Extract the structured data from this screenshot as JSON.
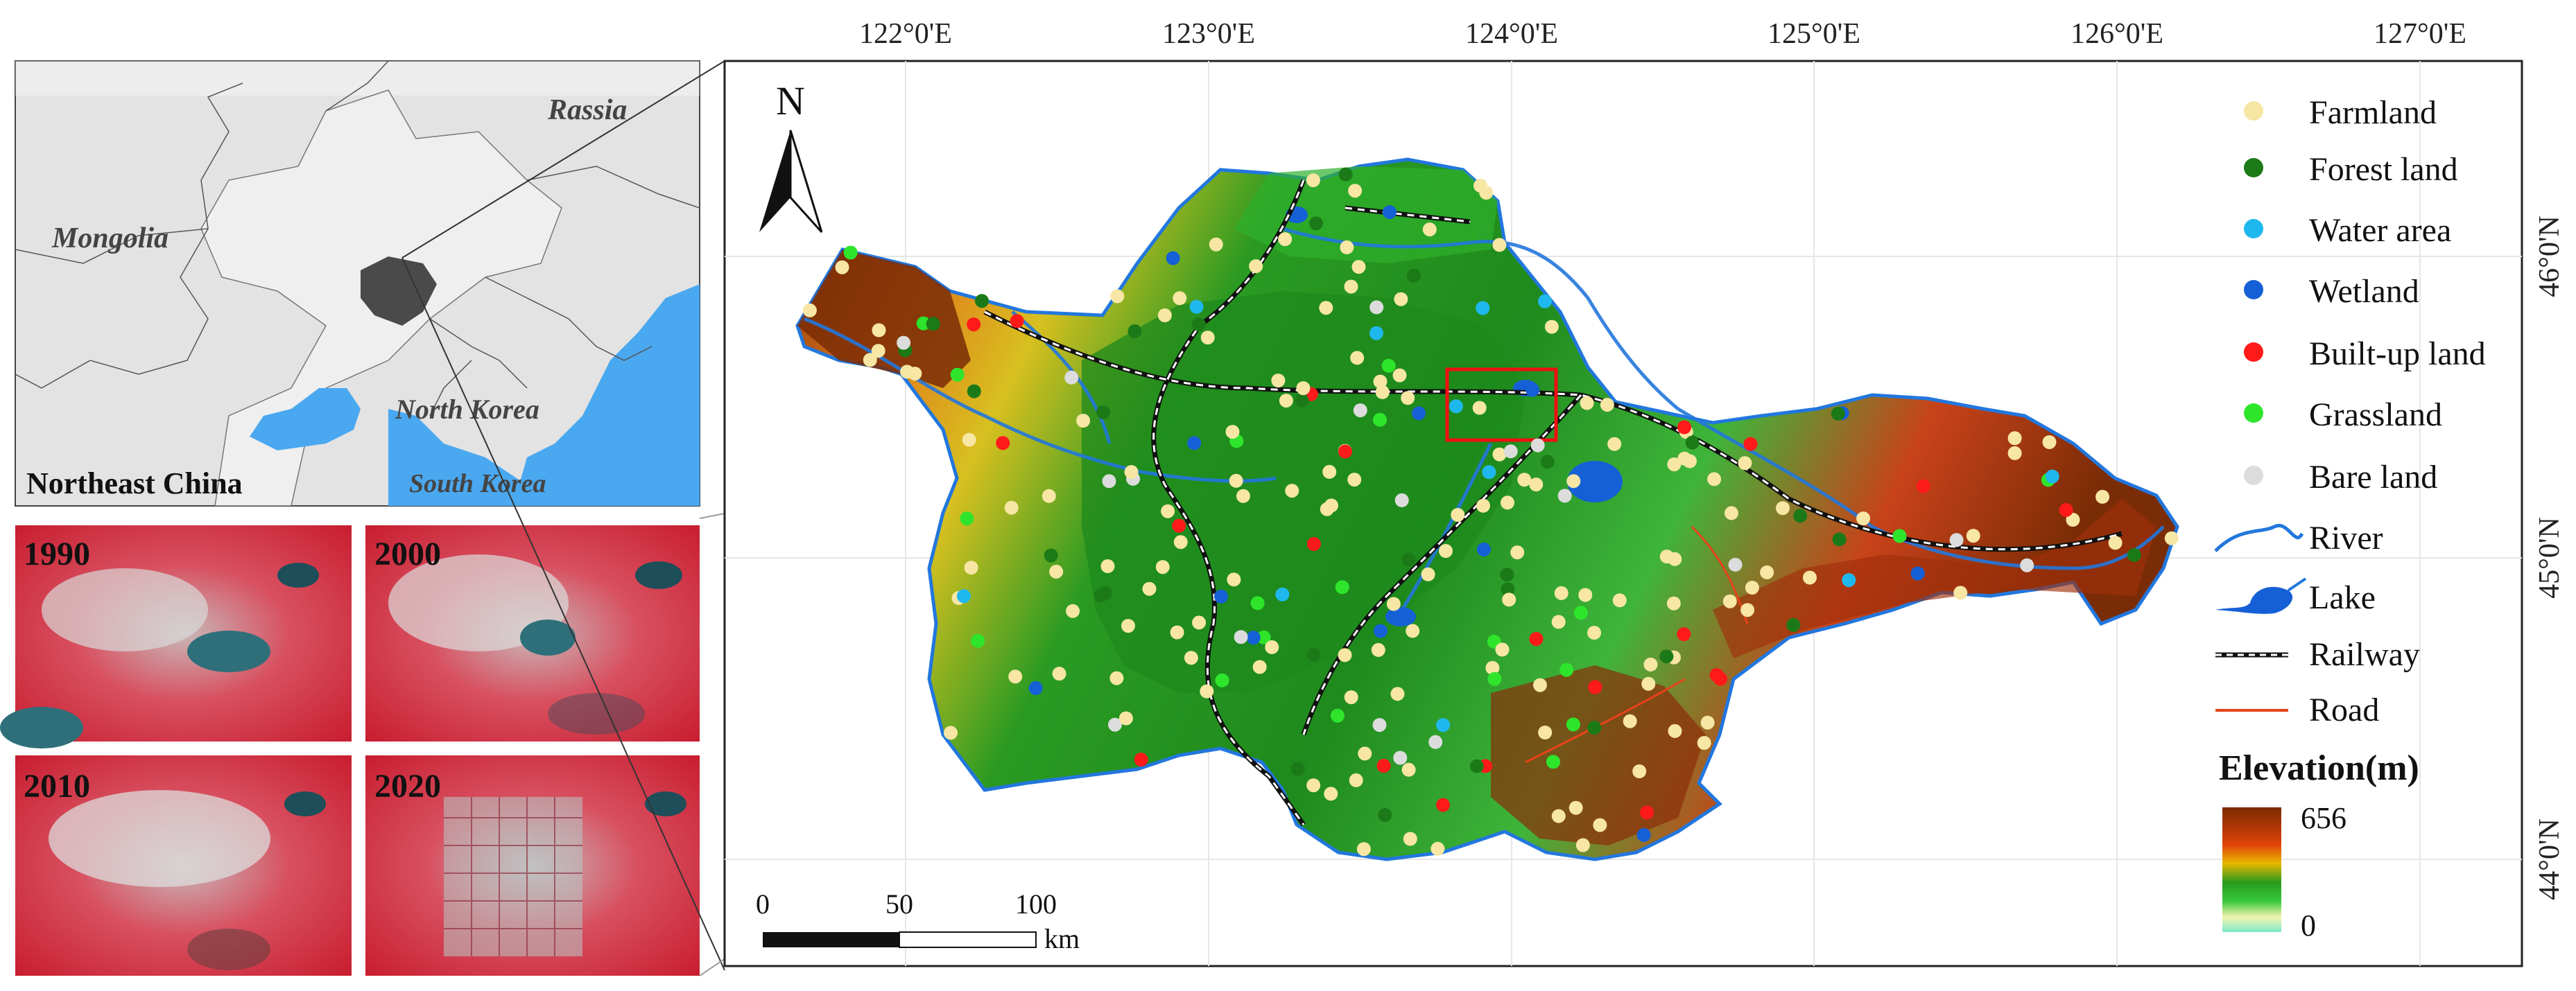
{
  "inset_map": {
    "title": "Northeast China",
    "labels": {
      "russia": "Rassia",
      "mongolia": "Mongolia",
      "north_korea": "North Korea",
      "south_korea": "South Korea"
    }
  },
  "imagery_panels": [
    {
      "year": "1990"
    },
    {
      "year": "2000"
    },
    {
      "year": "2010"
    },
    {
      "year": "2020"
    }
  ],
  "main_map": {
    "north_arrow": "N",
    "longitude_ticks": [
      "122°0'E",
      "123°0'E",
      "124°0'E",
      "125°0'E",
      "126°0'E",
      "127°0'E"
    ],
    "latitude_ticks": [
      "46°0'N",
      "45°0'N",
      "44°0'N"
    ],
    "scale_bar": {
      "labels": [
        "0",
        "50",
        "100"
      ],
      "unit": "km"
    }
  },
  "legend": {
    "items": [
      {
        "label": "Farmland",
        "color": "#f7e6a4"
      },
      {
        "label": "Forest land",
        "color": "#1b7a17"
      },
      {
        "label": "Water area",
        "color": "#1fb8ee"
      },
      {
        "label": "Wetland",
        "color": "#1560d6"
      },
      {
        "label": "Built-up land",
        "color": "#ff1a1a"
      },
      {
        "label": "Grassland",
        "color": "#2ee52b"
      },
      {
        "label": "Bare land",
        "color": "#dcdcdc"
      }
    ],
    "line_items": [
      {
        "label": "River"
      },
      {
        "label": "Lake"
      },
      {
        "label": "Railway"
      },
      {
        "label": "Road"
      }
    ],
    "elevation": {
      "title": "Elevation(m)",
      "max": "656",
      "min": "0"
    }
  }
}
